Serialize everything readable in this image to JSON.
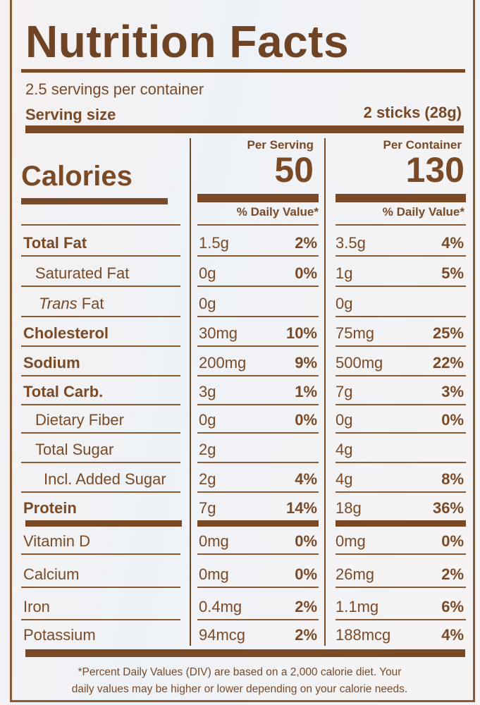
{
  "title": "Nutrition Facts",
  "servings_per_container": "2.5 servings per container",
  "serving_size_label": "Serving size",
  "serving_size_value": "2 sticks (28g)",
  "calories_label": "Calories",
  "columns": [
    {
      "header": "Per Serving",
      "calories": "50",
      "dv_label": "% Daily Value*"
    },
    {
      "header": "Per Container",
      "calories": "130",
      "dv_label": "% Daily Value*"
    }
  ],
  "nutrients": [
    {
      "name": "Total Fat",
      "bold": true,
      "indent": 0,
      "serving": {
        "amount": "1.5g",
        "dv": "2%"
      },
      "container": {
        "amount": "3.5g",
        "dv": "4%"
      }
    },
    {
      "name": "Saturated Fat",
      "bold": false,
      "indent": 1,
      "serving": {
        "amount": "0g",
        "dv": "0%"
      },
      "container": {
        "amount": "1g",
        "dv": "5%"
      }
    },
    {
      "name": "Trans Fat",
      "italic_prefix": "Trans",
      "bold": false,
      "indent": 1,
      "serving": {
        "amount": "0g",
        "dv": ""
      },
      "container": {
        "amount": "0g",
        "dv": ""
      }
    },
    {
      "name": "Cholesterol",
      "bold": true,
      "indent": 0,
      "serving": {
        "amount": "30mg",
        "dv": "10%"
      },
      "container": {
        "amount": "75mg",
        "dv": "25%"
      }
    },
    {
      "name": "Sodium",
      "bold": true,
      "indent": 0,
      "serving": {
        "amount": "200mg",
        "dv": "9%"
      },
      "container": {
        "amount": "500mg",
        "dv": "22%"
      }
    },
    {
      "name": "Total Carb.",
      "bold": true,
      "indent": 0,
      "serving": {
        "amount": "3g",
        "dv": "1%"
      },
      "container": {
        "amount": "7g",
        "dv": "3%"
      }
    },
    {
      "name": "Dietary Fiber",
      "bold": false,
      "indent": 1,
      "serving": {
        "amount": "0g",
        "dv": "0%"
      },
      "container": {
        "amount": "0g",
        "dv": "0%"
      }
    },
    {
      "name": "Total Sugar",
      "bold": false,
      "indent": 1,
      "serving": {
        "amount": "2g",
        "dv": ""
      },
      "container": {
        "amount": "4g",
        "dv": ""
      }
    },
    {
      "name": "Incl. Added Sugar",
      "bold": false,
      "indent": 2,
      "serving": {
        "amount": "2g",
        "dv": "4%"
      },
      "container": {
        "amount": "4g",
        "dv": "8%"
      }
    },
    {
      "name": "Protein",
      "bold": true,
      "indent": 0,
      "serving": {
        "amount": "7g",
        "dv": "14%"
      },
      "container": {
        "amount": "18g",
        "dv": "36%"
      }
    },
    {
      "name": "Vitamin D",
      "bold": false,
      "indent": 0,
      "serving": {
        "amount": "0mg",
        "dv": "0%"
      },
      "container": {
        "amount": "0mg",
        "dv": "0%"
      }
    },
    {
      "name": "Calcium",
      "bold": false,
      "indent": 0,
      "serving": {
        "amount": "0mg",
        "dv": "0%"
      },
      "container": {
        "amount": "26mg",
        "dv": "2%"
      }
    },
    {
      "name": "Iron",
      "bold": false,
      "indent": 0,
      "serving": {
        "amount": "0.4mg",
        "dv": "2%"
      },
      "container": {
        "amount": "1.1mg",
        "dv": "6%"
      }
    },
    {
      "name": "Potassium",
      "bold": false,
      "indent": 0,
      "serving": {
        "amount": "94mcg",
        "dv": "2%"
      },
      "container": {
        "amount": "188mcg",
        "dv": "4%"
      }
    }
  ],
  "footnote": [
    "*Percent Daily Values (DIV) are based on a 2,000 calorie diet. Your",
    "daily values may be higher or lower depending on your calorie needs."
  ],
  "colors": {
    "ink": "#7a4a26"
  }
}
